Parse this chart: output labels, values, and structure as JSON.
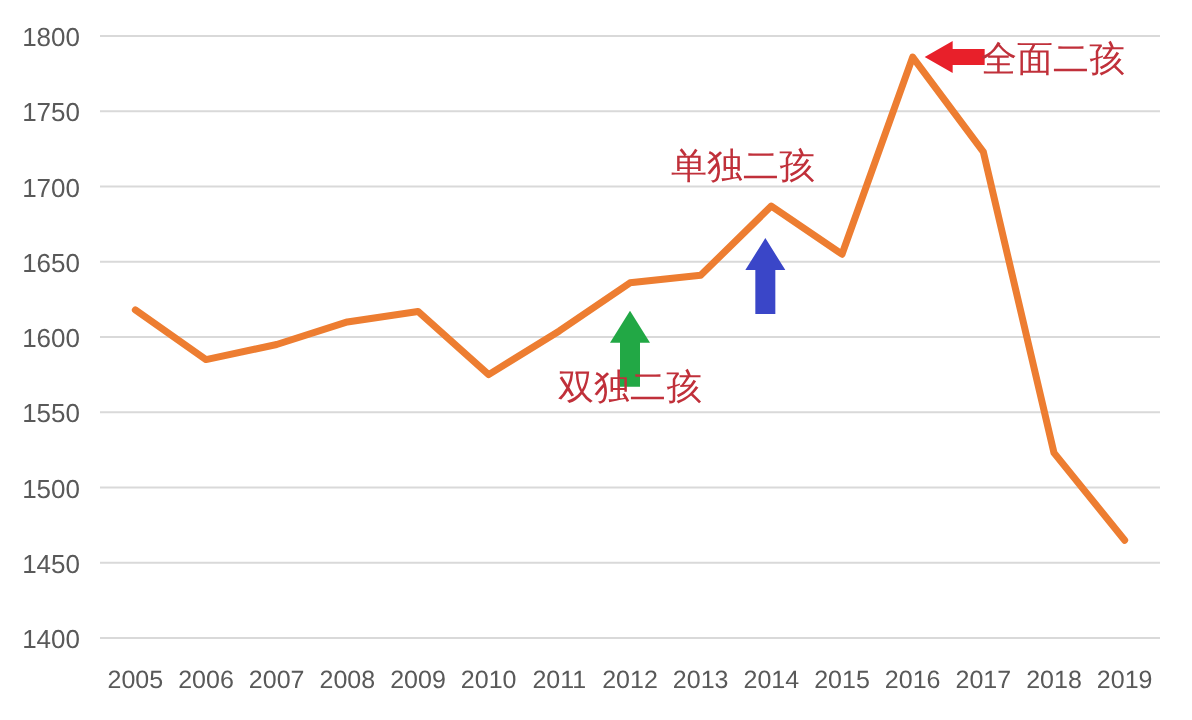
{
  "chart_data": {
    "type": "line",
    "categories": [
      "2005",
      "2006",
      "2007",
      "2008",
      "2009",
      "2010",
      "2011",
      "2012",
      "2013",
      "2014",
      "2015",
      "2016",
      "2017",
      "2018",
      "2019"
    ],
    "series": [
      {
        "color": "#ed7d31",
        "values": [
          1618,
          1585,
          1595,
          1610,
          1617,
          1575,
          1604,
          1636,
          1641,
          1687,
          1655,
          1786,
          1723,
          1523,
          1465
        ]
      }
    ],
    "ylim": [
      1400,
      1800
    ],
    "yticks": [
      1400,
      1450,
      1500,
      1550,
      1600,
      1650,
      1700,
      1750,
      1800
    ],
    "grid": "y",
    "marker": "none",
    "line_style": "solid",
    "annotations": [
      {
        "text": "双独二孩",
        "x": "2012",
        "y": 1636
      },
      {
        "text": "单独二孩",
        "x": "2014",
        "y": 1687
      },
      {
        "text": "全面二孩",
        "x": "2016",
        "y": 1786
      }
    ]
  }
}
